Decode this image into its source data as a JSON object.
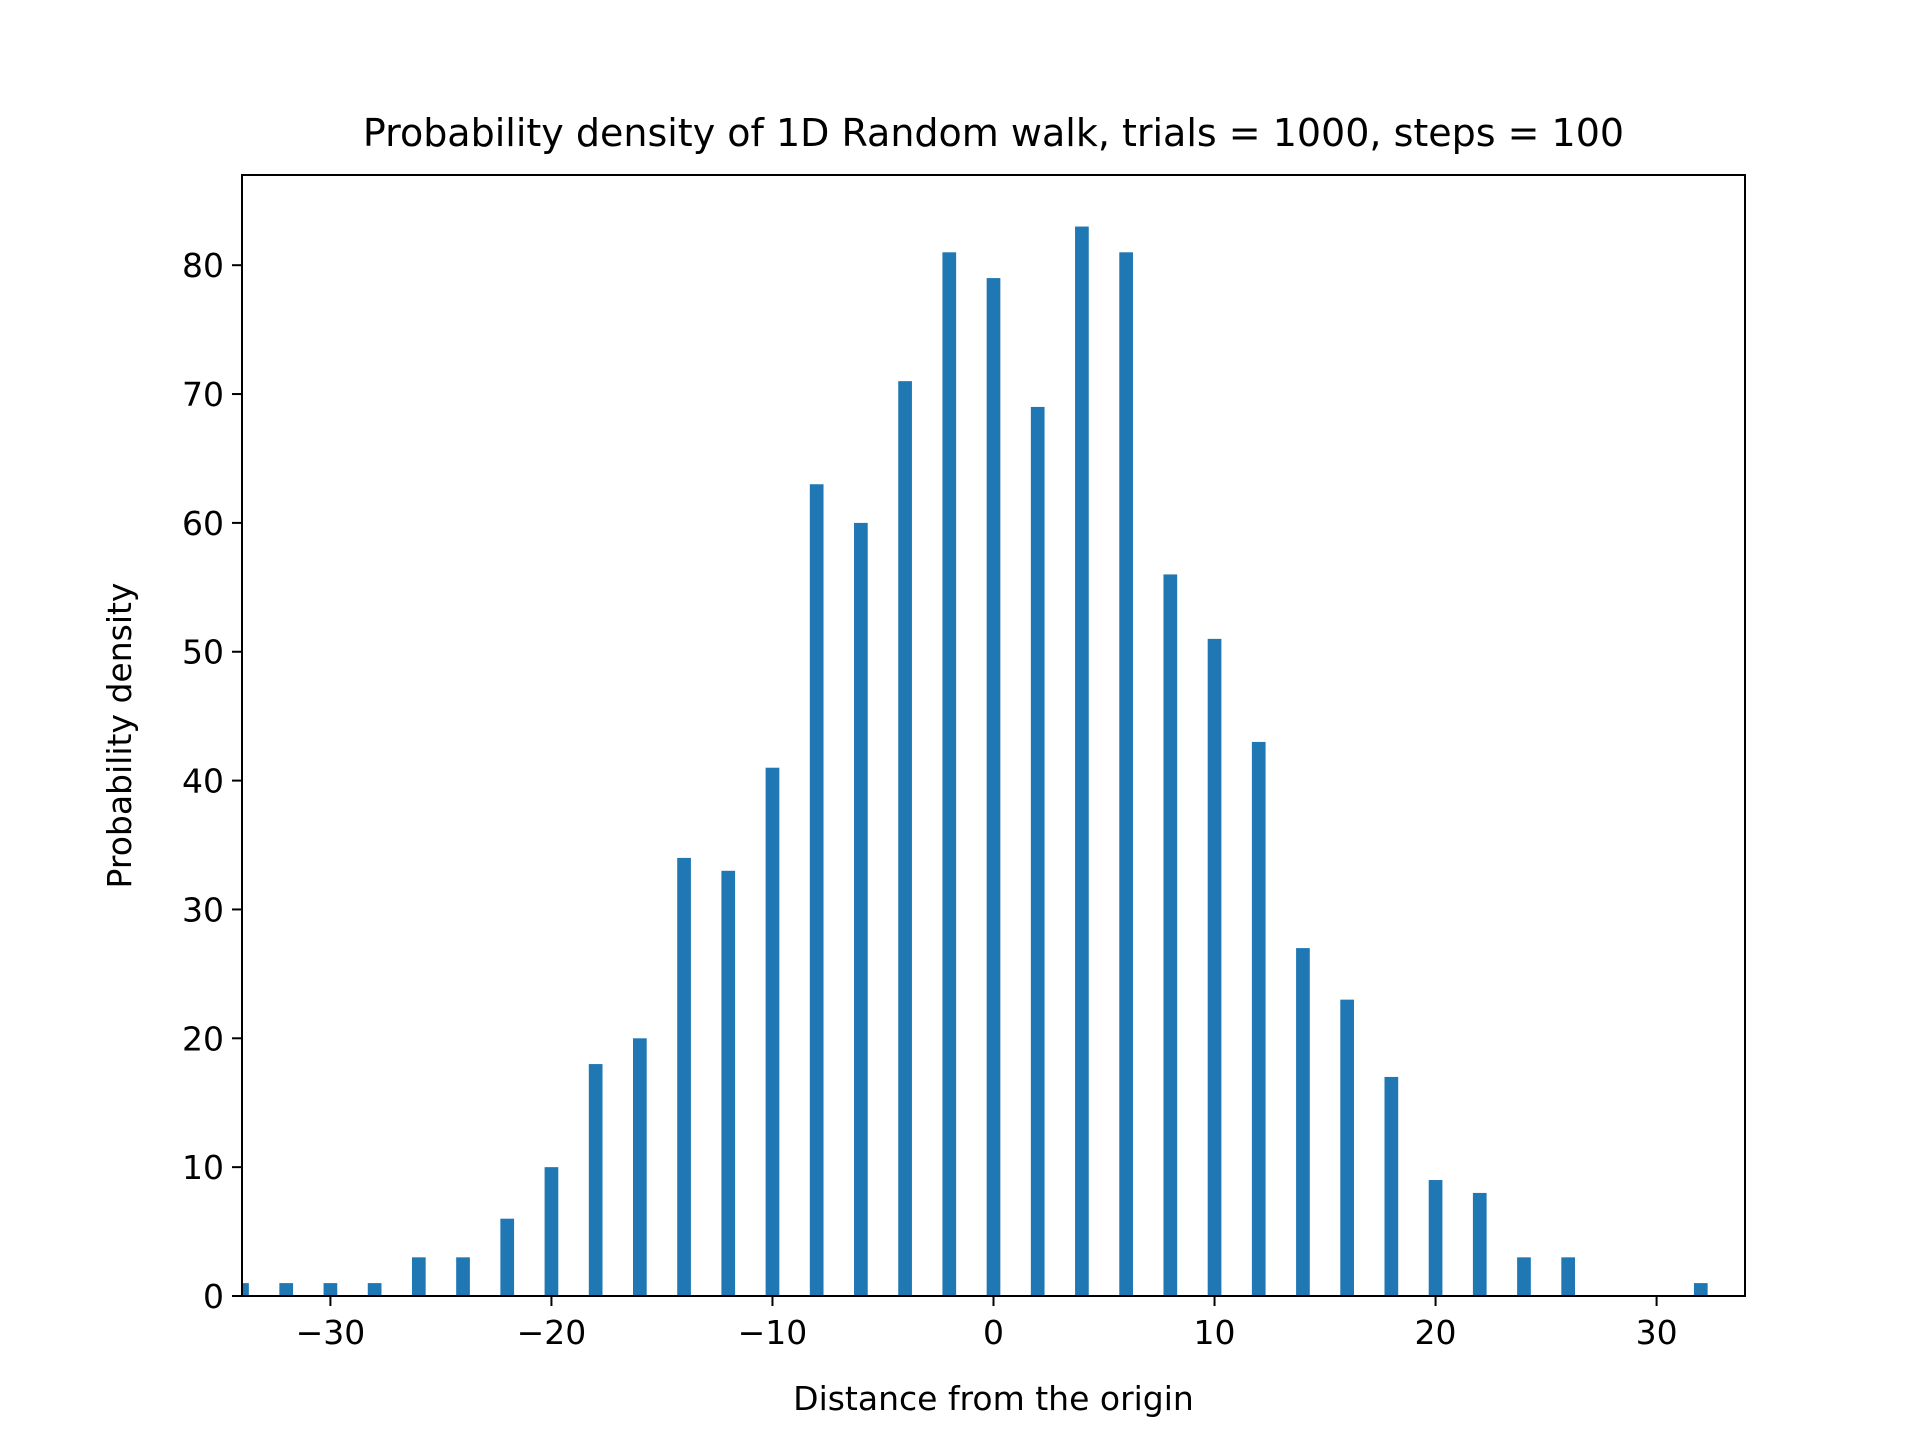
{
  "chart_data": {
    "type": "bar",
    "title": "Probability density of 1D Random walk, trials = 1000, steps = 100",
    "xlabel": "Distance from the origin",
    "ylabel": "Probability density",
    "xlim": [
      -34,
      34
    ],
    "ylim": [
      0,
      87
    ],
    "xticks": [
      -30,
      -20,
      -10,
      0,
      10,
      20,
      30
    ],
    "xtick_labels": [
      "−30",
      "−20",
      "−10",
      "0",
      "10",
      "20",
      "30"
    ],
    "yticks": [
      0,
      10,
      20,
      30,
      40,
      50,
      60,
      70,
      80
    ],
    "ytick_labels": [
      "0",
      "10",
      "20",
      "30",
      "40",
      "50",
      "60",
      "70",
      "80"
    ],
    "grid": false,
    "bar_width": 0.62,
    "bar_color": "#1f77b4",
    "x": [
      -34,
      -32,
      -30,
      -28,
      -26,
      -24,
      -22,
      -20,
      -18,
      -16,
      -14,
      -12,
      -10,
      -8,
      -6,
      -4,
      -2,
      0,
      2,
      4,
      6,
      8,
      10,
      12,
      14,
      16,
      18,
      20,
      22,
      24,
      26,
      32
    ],
    "values": [
      1,
      1,
      1,
      1,
      3,
      3,
      6,
      10,
      18,
      20,
      34,
      33,
      41,
      63,
      60,
      71,
      81,
      79,
      69,
      83,
      81,
      56,
      51,
      43,
      27,
      23,
      17,
      9,
      8,
      3,
      3,
      1
    ]
  }
}
